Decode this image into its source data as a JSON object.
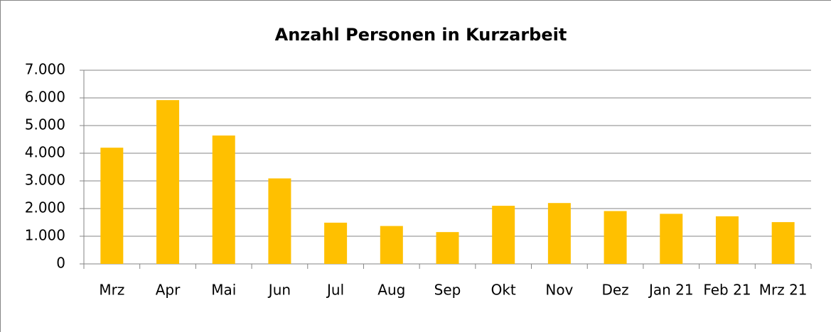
{
  "chart_data": {
    "type": "bar",
    "title": "Anzahl Personen in Kurzarbeit",
    "categories": [
      "Mrz",
      "Apr",
      "Mai",
      "Jun",
      "Jul",
      "Aug",
      "Sep",
      "Okt",
      "Nov",
      "Dez",
      "Jan 21",
      "Feb 21",
      "Mrz 21"
    ],
    "values": [
      4200,
      5920,
      4640,
      3090,
      1490,
      1370,
      1150,
      2100,
      2200,
      1910,
      1810,
      1720,
      1510
    ],
    "color": "#ffc000",
    "ylim": [
      0,
      7000
    ],
    "yticks": [
      0,
      {
        "value": 1000,
        "label": "1.000"
      },
      {
        "value": 2000,
        "label": "2.000"
      },
      {
        "value": 3000,
        "label": "3.000"
      },
      {
        "value": 4000,
        "label": "4.000"
      },
      {
        "value": 5000,
        "label": "5.000"
      },
      {
        "value": 6000,
        "label": "6.000"
      },
      {
        "value": 7000,
        "label": "7.000"
      }
    ],
    "grid": true
  }
}
